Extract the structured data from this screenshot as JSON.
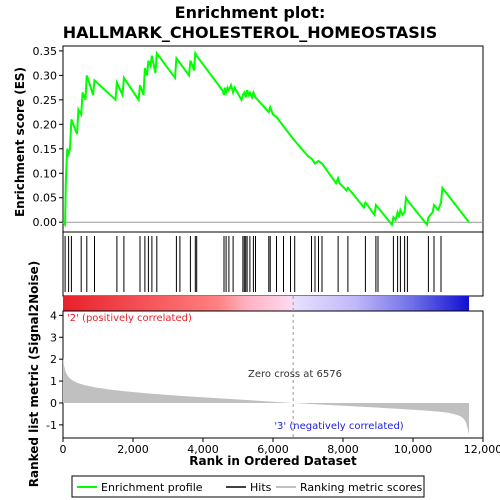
{
  "chart_data": {
    "type": "line",
    "title_line1": "Enrichment plot:",
    "title_line2": "HALLMARK_CHOLESTEROL_HOMEOSTASIS",
    "top_panel": {
      "ylabel": "Enrichment score (ES)",
      "ylim": [
        -0.02,
        0.36
      ],
      "yticks": [
        "0.00",
        "0.05",
        "0.10",
        "0.15",
        "0.20",
        "0.25",
        "0.30",
        "0.35"
      ],
      "ytick_values": [
        0,
        0.05,
        0.1,
        0.15,
        0.2,
        0.25,
        0.3,
        0.35
      ],
      "series": {
        "name": "Enrichment profile",
        "color": "#00ff00",
        "x": [
          0,
          60,
          80,
          120,
          160,
          200,
          240,
          400,
          440,
          520,
          560,
          640,
          680,
          860,
          900,
          1500,
          1540,
          1700,
          1740,
          2160,
          2200,
          2300,
          2340,
          2400,
          2440,
          2500,
          2540,
          2640,
          2680,
          3200,
          3240,
          3600,
          3640,
          3700,
          3740,
          3780,
          3820,
          4550,
          4600,
          4620,
          4660,
          4700,
          4740,
          4800,
          4860,
          4900,
          5100,
          5140,
          5180,
          5220,
          5260,
          5300,
          5340,
          5400,
          5440,
          5500,
          5880,
          5920,
          6000,
          6100,
          6576,
          7000,
          7100,
          7200,
          7300,
          7400,
          7800,
          7860,
          7900,
          8100,
          8140,
          8200,
          8600,
          8640,
          8700,
          8900,
          8940,
          9000,
          9400,
          9440,
          9500,
          9560,
          9600,
          9640,
          9700,
          9760,
          9800,
          9840,
          10400,
          10440,
          10560,
          10600,
          10720,
          10800,
          10840,
          11600
        ],
        "y": [
          0.0,
          -0.005,
          0.08,
          0.15,
          0.14,
          0.15,
          0.21,
          0.18,
          0.23,
          0.22,
          0.265,
          0.25,
          0.3,
          0.26,
          0.29,
          0.25,
          0.285,
          0.26,
          0.295,
          0.25,
          0.28,
          0.26,
          0.315,
          0.3,
          0.33,
          0.32,
          0.34,
          0.305,
          0.345,
          0.295,
          0.335,
          0.3,
          0.33,
          0.32,
          0.31,
          0.345,
          0.34,
          0.27,
          0.26,
          0.275,
          0.265,
          0.275,
          0.27,
          0.28,
          0.265,
          0.275,
          0.25,
          0.26,
          0.265,
          0.255,
          0.27,
          0.26,
          0.265,
          0.255,
          0.265,
          0.255,
          0.225,
          0.235,
          0.22,
          0.215,
          0.17,
          0.135,
          0.13,
          0.12,
          0.125,
          0.12,
          0.08,
          0.09,
          0.08,
          0.065,
          0.07,
          0.065,
          0.03,
          0.04,
          0.035,
          0.015,
          0.035,
          0.03,
          -0.005,
          0.01,
          0.005,
          0.02,
          0.01,
          0.025,
          0.015,
          0.02,
          0.05,
          0.045,
          -0.005,
          0.01,
          0.02,
          0.035,
          0.025,
          0.04,
          0.07,
          0.0
        ]
      }
    },
    "hits": {
      "name": "Hits",
      "color": "#000000",
      "positions": [
        60,
        160,
        240,
        520,
        680,
        900,
        1540,
        1740,
        2200,
        2340,
        2440,
        2540,
        2680,
        3240,
        3340,
        3640,
        3780,
        3820,
        4600,
        4660,
        4740,
        4860,
        5140,
        5180,
        5220,
        5260,
        5340,
        5440,
        5500,
        5880,
        5920,
        6100,
        6300,
        6500,
        6620,
        7100,
        7200,
        7300,
        7400,
        7860,
        8140,
        8640,
        8940,
        9000,
        9440,
        9560,
        9640,
        9760,
        9840,
        10440,
        10600,
        10800
      ]
    },
    "colorbar": {
      "label_pos": "'2' (positively correlated)",
      "label_neg": "'3' (negatively correlated)",
      "pos_color": "#e8202a",
      "neg_color": "#2020e0"
    },
    "bottom_panel": {
      "ylabel": "Ranked list metric (Signal2Noise)",
      "xlabel": "Rank in Ordered Dataset",
      "ylim": [
        -1.6,
        4.2
      ],
      "yticks": [
        "-1",
        "0",
        "1",
        "2",
        "3",
        "4"
      ],
      "ytick_values": [
        -1,
        0,
        1,
        2,
        3,
        4
      ],
      "xlim": [
        0,
        12000
      ],
      "xticks": [
        "0",
        "2,000",
        "4,000",
        "6,000",
        "8,000",
        "10,000",
        "12,000"
      ],
      "xtick_values": [
        0,
        2000,
        4000,
        6000,
        8000,
        10000,
        12000
      ],
      "zero_cross_label": "Zero cross at 6576",
      "zero_cross": 6576,
      "total": 11600,
      "metric_profile": {
        "name": "Ranking metric scores",
        "color": "#c0c0c0",
        "x": [
          0,
          30,
          80,
          150,
          250,
          400,
          600,
          900,
          1300,
          1800,
          2500,
          3300,
          4200,
          5200,
          6000,
          6576,
          7200,
          8000,
          8800,
          9600,
          10200,
          10700,
          11000,
          11200,
          11350,
          11450,
          11520,
          11580,
          11600
        ],
        "y": [
          2.1,
          1.7,
          1.4,
          1.2,
          1.05,
          0.92,
          0.82,
          0.72,
          0.62,
          0.53,
          0.43,
          0.33,
          0.24,
          0.14,
          0.06,
          0.0,
          -0.06,
          -0.13,
          -0.2,
          -0.27,
          -0.33,
          -0.39,
          -0.45,
          -0.52,
          -0.6,
          -0.72,
          -0.9,
          -1.3,
          -1.45
        ]
      }
    },
    "legend": {
      "items": [
        "Enrichment profile",
        "Hits",
        "Ranking metric scores"
      ],
      "placement": "bottom"
    }
  }
}
